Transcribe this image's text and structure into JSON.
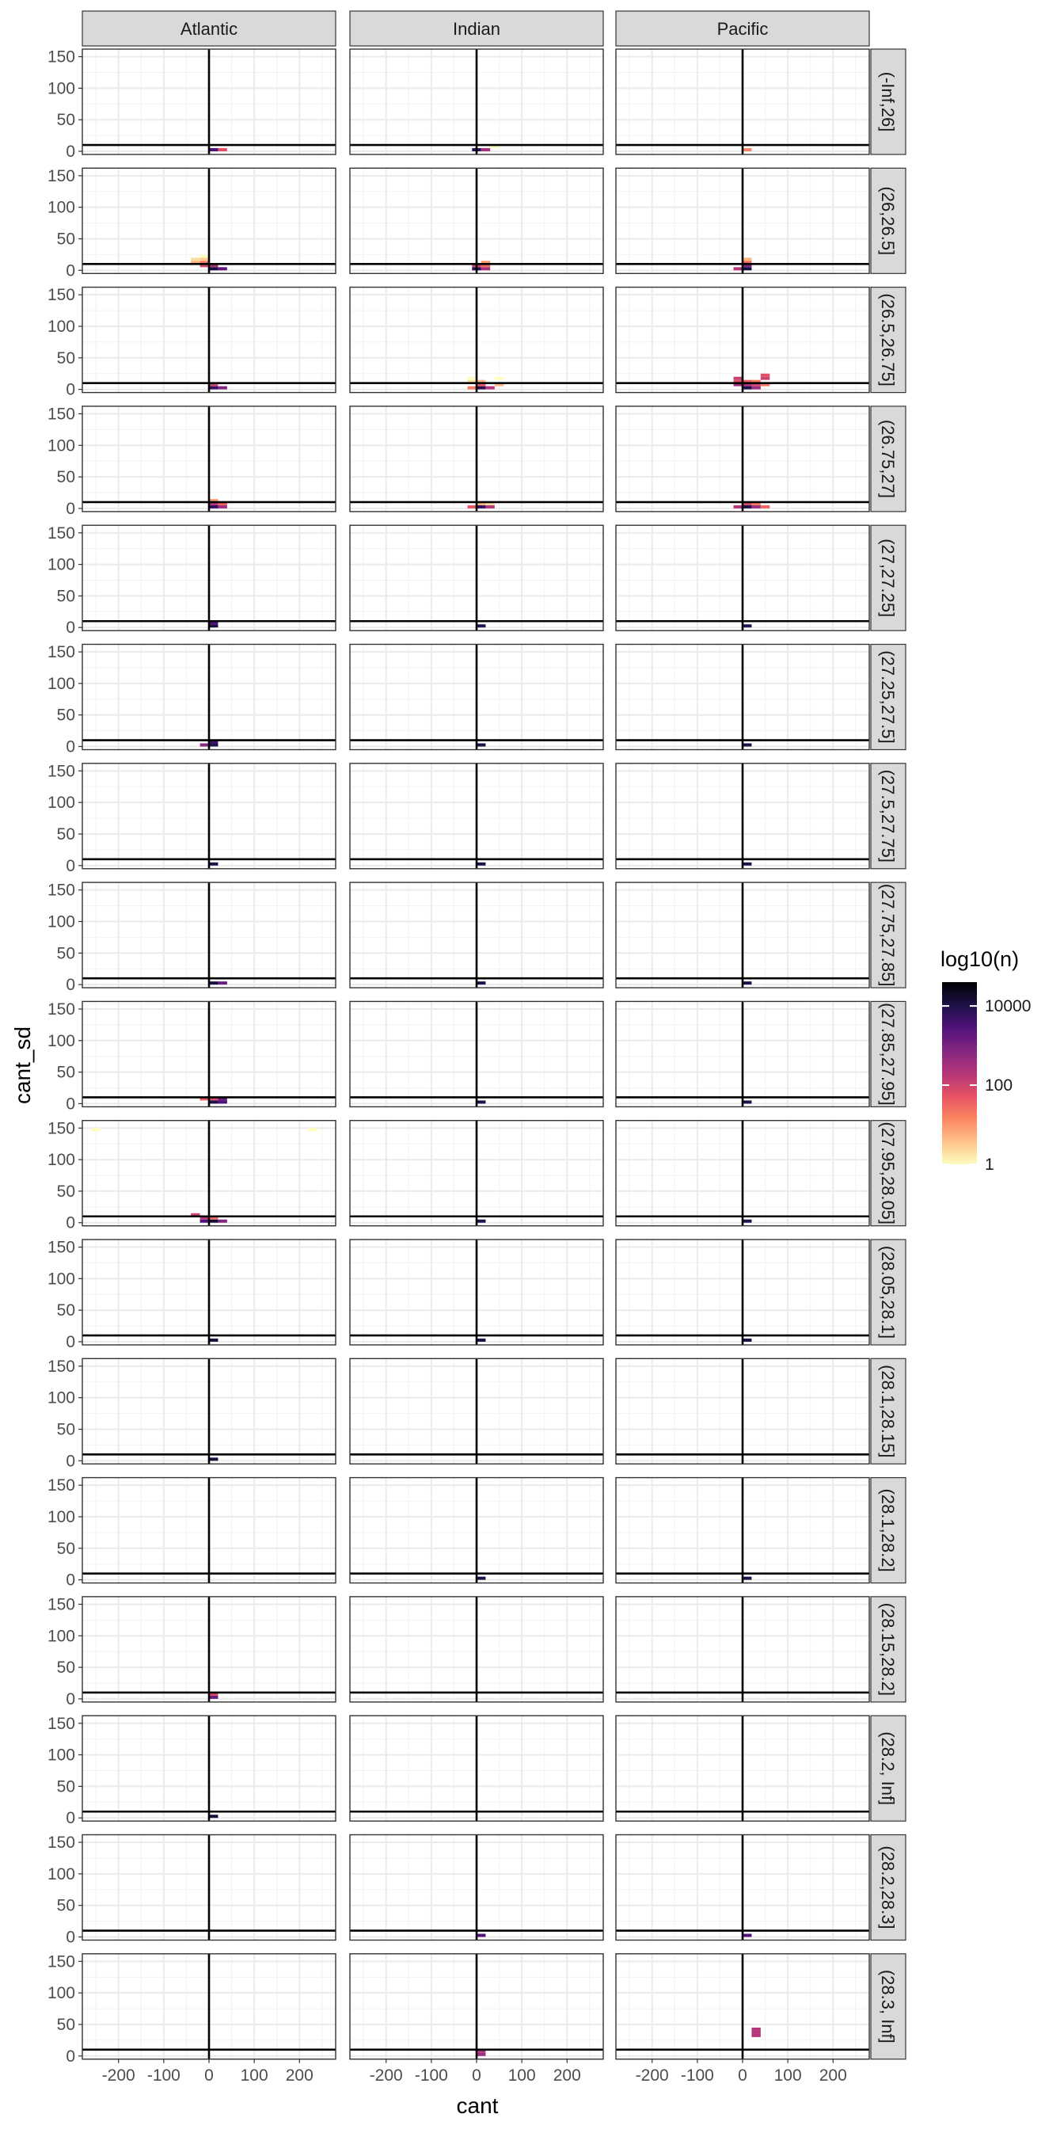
{
  "chart_data": {
    "type": "heatmap",
    "facet_cols": [
      "Atlantic",
      "Indian",
      "Pacific"
    ],
    "facet_rows": [
      "(-Inf,26]",
      "(26,26.5]",
      "(26.5,26.75]",
      "(26.75,27]",
      "(27,27.25]",
      "(27.25,27.5]",
      "(27.5,27.75]",
      "(27.75,27.85]",
      "(27.85,27.95]",
      "(27.95,28.05]",
      "(28.05,28.1]",
      "(28.1,28.15]",
      "(28.1,28.2]",
      "(28.15,28.2]",
      "(28.2, Inf]",
      "(28.2,28.3]",
      "(28.3, Inf]"
    ],
    "xlabel": "cant",
    "ylabel": "cant_sd",
    "xlim": [
      -280,
      280
    ],
    "ylim": [
      -5,
      162
    ],
    "x_ticks": [
      -200,
      -100,
      0,
      100,
      200
    ],
    "y_ticks": [
      0,
      50,
      100,
      150
    ],
    "bin_width": 20,
    "bin_height": 5,
    "vline_x": 0,
    "hline_y": 10,
    "grid": true,
    "legend": {
      "title": "log10(n)",
      "scale": "log10",
      "position": "right",
      "breaks": [
        1,
        100,
        10000
      ],
      "break_labels": [
        "1",
        "100",
        "10000"
      ],
      "max": 40000,
      "colors": [
        "#fcfdbf",
        "#fec287",
        "#fb8761",
        "#e65164",
        "#b5367a",
        "#832681",
        "#51127c",
        "#1d1147",
        "#000004"
      ]
    },
    "cells": [
      [
        [
          [
            10,
            2.5,
            3000
          ],
          [
            30,
            2.5,
            60
          ]
        ],
        [
          [
            0,
            2.5,
            8000
          ],
          [
            20,
            2.5,
            300
          ],
          [
            40,
            7.5,
            1
          ]
        ],
        [
          [
            10,
            2.5,
            15
          ]
        ]
      ],
      [
        [
          [
            10,
            2.5,
            12000
          ],
          [
            30,
            2.5,
            2000
          ],
          [
            10,
            7.5,
            300
          ],
          [
            -10,
            7.5,
            80
          ],
          [
            -10,
            12.5,
            20
          ],
          [
            -30,
            12.5,
            5
          ],
          [
            -10,
            17.5,
            3
          ],
          [
            -30,
            17.5,
            2
          ],
          [
            -10,
            22.5,
            1
          ]
        ],
        [
          [
            0,
            2.5,
            8000
          ],
          [
            20,
            2.5,
            300
          ],
          [
            0,
            7.5,
            100
          ],
          [
            20,
            7.5,
            30
          ],
          [
            20,
            12.5,
            10
          ]
        ],
        [
          [
            10,
            2.5,
            12000
          ],
          [
            -10,
            2.5,
            200
          ],
          [
            10,
            7.5,
            800
          ],
          [
            10,
            12.5,
            30
          ],
          [
            10,
            17.5,
            5
          ]
        ]
      ],
      [
        [
          [
            10,
            2.5,
            6000
          ],
          [
            30,
            2.5,
            800
          ],
          [
            10,
            7.5,
            100
          ]
        ],
        [
          [
            10,
            2.5,
            8000
          ],
          [
            30,
            2.5,
            200
          ],
          [
            -10,
            2.5,
            20
          ],
          [
            10,
            7.5,
            50
          ],
          [
            50,
            7.5,
            5
          ],
          [
            10,
            12.5,
            5
          ],
          [
            -10,
            12.5,
            2
          ],
          [
            50,
            17.5,
            1
          ],
          [
            -10,
            17.5,
            1
          ]
        ],
        [
          [
            10,
            2.5,
            10000
          ],
          [
            30,
            2.5,
            400
          ],
          [
            -10,
            7.5,
            400
          ],
          [
            10,
            7.5,
            300
          ],
          [
            30,
            7.5,
            100
          ],
          [
            50,
            7.5,
            20
          ],
          [
            -10,
            12.5,
            60
          ],
          [
            10,
            12.5,
            40
          ],
          [
            30,
            12.5,
            20
          ],
          [
            -10,
            17.5,
            120
          ],
          [
            50,
            17.5,
            100
          ],
          [
            50,
            22.5,
            60
          ]
        ]
      ],
      [
        [
          [
            10,
            2.5,
            6000
          ],
          [
            30,
            2.5,
            400
          ],
          [
            10,
            7.5,
            200
          ],
          [
            30,
            7.5,
            40
          ],
          [
            10,
            12.5,
            8
          ]
        ],
        [
          [
            10,
            2.5,
            6000
          ],
          [
            -10,
            2.5,
            50
          ],
          [
            30,
            2.5,
            200
          ],
          [
            10,
            7.5,
            5
          ],
          [
            30,
            7.5,
            2
          ]
        ],
        [
          [
            10,
            2.5,
            10000
          ],
          [
            -10,
            2.5,
            200
          ],
          [
            30,
            2.5,
            400
          ],
          [
            50,
            2.5,
            30
          ],
          [
            10,
            7.5,
            80
          ],
          [
            30,
            7.5,
            20
          ]
        ]
      ],
      [
        [
          [
            10,
            2.5,
            12000
          ],
          [
            10,
            7.5,
            3000
          ]
        ],
        [
          [
            10,
            2.5,
            8000
          ]
        ],
        [
          [
            10,
            2.5,
            8000
          ]
        ]
      ],
      [
        [
          [
            10,
            2.5,
            10000
          ],
          [
            10,
            7.5,
            4000
          ],
          [
            -10,
            2.5,
            600
          ]
        ],
        [
          [
            10,
            2.5,
            10000
          ]
        ],
        [
          [
            10,
            2.5,
            10000
          ]
        ]
      ],
      [
        [
          [
            10,
            2.5,
            10000
          ]
        ],
        [
          [
            10,
            2.5,
            10000
          ]
        ],
        [
          [
            10,
            2.5,
            10000
          ]
        ]
      ],
      [
        [
          [
            10,
            2.5,
            12000
          ],
          [
            30,
            2.5,
            1500
          ]
        ],
        [
          [
            10,
            2.5,
            10000
          ]
        ],
        [
          [
            10,
            2.5,
            10000
          ]
        ]
      ],
      [
        [
          [
            10,
            2.5,
            10000
          ],
          [
            30,
            2.5,
            3000
          ],
          [
            30,
            7.5,
            1500
          ],
          [
            10,
            7.5,
            80
          ],
          [
            -10,
            7.5,
            40
          ]
        ],
        [
          [
            10,
            2.5,
            10000
          ]
        ],
        [
          [
            10,
            2.5,
            10000
          ]
        ]
      ],
      [
        [
          [
            10,
            2.5,
            15000
          ],
          [
            -10,
            2.5,
            3000
          ],
          [
            30,
            2.5,
            800
          ],
          [
            -10,
            7.5,
            200
          ],
          [
            10,
            7.5,
            30
          ],
          [
            -30,
            12.5,
            100
          ],
          [
            -250,
            147.5,
            1
          ],
          [
            230,
            147.5,
            1
          ]
        ],
        [
          [
            10,
            2.5,
            10000
          ]
        ],
        [
          [
            10,
            2.5,
            10000
          ]
        ]
      ],
      [
        [
          [
            10,
            2.5,
            12000
          ]
        ],
        [
          [
            10,
            2.5,
            10000
          ]
        ],
        [
          [
            10,
            2.5,
            10000
          ]
        ]
      ],
      [
        [
          [
            10,
            2.5,
            12000
          ]
        ],
        [],
        []
      ],
      [
        [],
        [
          [
            10,
            2.5,
            10000
          ]
        ],
        [
          [
            10,
            2.5,
            10000
          ]
        ]
      ],
      [
        [
          [
            10,
            2.5,
            1500
          ],
          [
            10,
            7.5,
            80
          ]
        ],
        [],
        []
      ],
      [
        [
          [
            10,
            2.5,
            12000
          ]
        ],
        [],
        []
      ],
      [
        [],
        [
          [
            10,
            2.5,
            3000
          ]
        ],
        [
          [
            10,
            2.5,
            3000
          ]
        ]
      ],
      [
        [],
        [
          [
            10,
            2.5,
            400
          ],
          [
            10,
            7.5,
            200
          ]
        ],
        [
          [
            30,
            32.5,
            200
          ],
          [
            30,
            37.5,
            200
          ],
          [
            30,
            42.5,
            200
          ]
        ]
      ]
    ]
  }
}
